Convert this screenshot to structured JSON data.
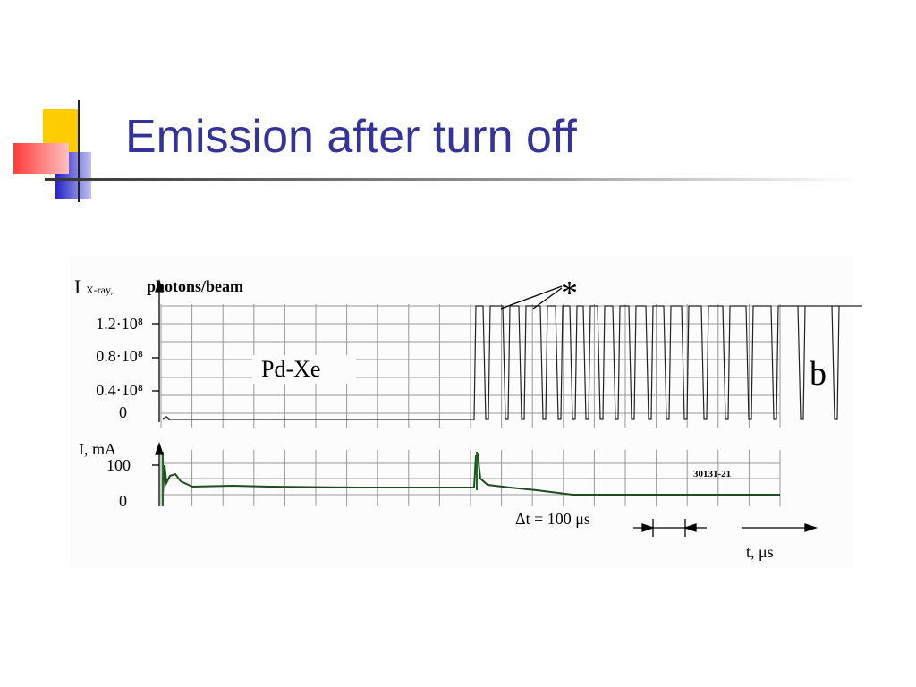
{
  "slide": {
    "title": "Emission after turn off",
    "figure": {
      "xray_axis_symbol": "I",
      "xray_axis_subscript": "X-ray,",
      "xray_axis_unit": "photons/beam",
      "xray_ticks": [
        "1.2·10⁸",
        "0.8·10⁸",
        "0.4·10⁸",
        "0"
      ],
      "current_axis_label": "I, mA",
      "current_ticks": [
        "100",
        "0"
      ],
      "sample_label": "Pd-Xe",
      "panel_label": "b",
      "marker": "*",
      "shot_number": "30131-21",
      "time_scale": "Δt = 100 μs",
      "time_axis_label": "t, μs"
    }
  }
}
